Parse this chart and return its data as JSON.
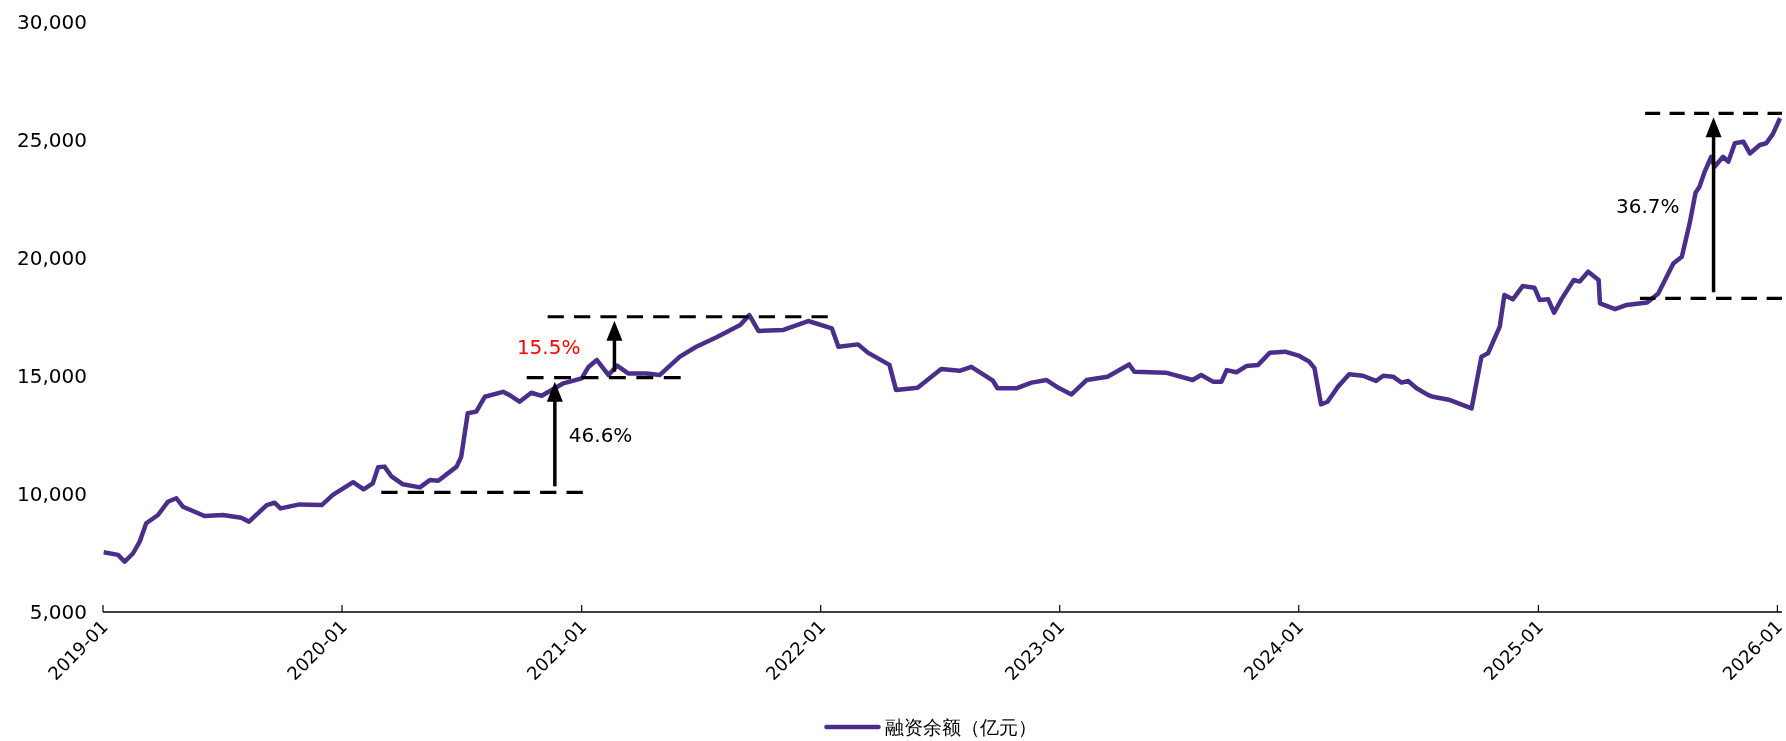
{
  "chart_data": {
    "type": "line",
    "xlim": [
      "2019-01-01",
      "2026-01-08"
    ],
    "ylim": [
      5000,
      30000
    ],
    "xticks": [
      "2019-01",
      "2020-01",
      "2021-01",
      "2022-01",
      "2023-01",
      "2024-01",
      "2025-01",
      "2026-01"
    ],
    "yticks": [
      {
        "value": 5000,
        "label": "5,000"
      },
      {
        "value": 10000,
        "label": "10,000"
      },
      {
        "value": 15000,
        "label": "15,000"
      },
      {
        "value": 20000,
        "label": "20,000"
      },
      {
        "value": 25000,
        "label": "25,000"
      },
      {
        "value": 30000,
        "label": "30,000"
      }
    ],
    "grid": false,
    "legend": "bottom",
    "marker": "none",
    "line_style": "solid",
    "series": [
      {
        "name": "融资余额（亿元）",
        "color": "#4a2f8a",
        "x": [
          "2019-01-02",
          "2019-01-24",
          "2019-02-03",
          "2019-02-16",
          "2019-02-26",
          "2019-03-08",
          "2019-03-26",
          "2019-04-10",
          "2019-04-23",
          "2019-05-03",
          "2019-06-05",
          "2019-07-03",
          "2019-07-31",
          "2019-08-12",
          "2019-09-08",
          "2019-09-20",
          "2019-09-29",
          "2019-10-28",
          "2019-12-01",
          "2019-12-18",
          "2020-01-18",
          "2020-02-03",
          "2020-02-17",
          "2020-02-25",
          "2020-03-06",
          "2020-03-16",
          "2020-04-03",
          "2020-04-29",
          "2020-05-14",
          "2020-05-27",
          "2020-06-24",
          "2020-07-01",
          "2020-07-11",
          "2020-07-24",
          "2020-08-06",
          "2020-09-03",
          "2020-09-13",
          "2020-09-28",
          "2020-10-16",
          "2020-11-01",
          "2020-12-04",
          "2021-01-01",
          "2021-01-11",
          "2021-01-24",
          "2021-02-11",
          "2021-02-24",
          "2021-03-13",
          "2021-04-10",
          "2021-04-30",
          "2021-05-31",
          "2021-06-25",
          "2021-07-26",
          "2021-08-31",
          "2021-09-14",
          "2021-09-28",
          "2021-11-05",
          "2021-12-13",
          "2022-01-18",
          "2022-01-28",
          "2022-02-27",
          "2022-03-14",
          "2022-04-16",
          "2022-04-26",
          "2022-05-29",
          "2022-07-04",
          "2022-08-01",
          "2022-08-19",
          "2022-09-21",
          "2022-09-28",
          "2022-10-27",
          "2022-11-19",
          "2022-12-12",
          "2022-12-30",
          "2023-01-19",
          "2023-02-11",
          "2023-03-15",
          "2023-04-17",
          "2023-04-25",
          "2023-06-12",
          "2023-07-23",
          "2023-08-05",
          "2023-08-23",
          "2023-09-05",
          "2023-09-13",
          "2023-09-28",
          "2023-10-13",
          "2023-10-31",
          "2023-11-18",
          "2023-12-11",
          "2024-01-02",
          "2024-01-17",
          "2024-01-25",
          "2024-02-04",
          "2024-02-14",
          "2024-03-01",
          "2024-03-18",
          "2024-04-08",
          "2024-04-28",
          "2024-05-09",
          "2024-05-24",
          "2024-06-06",
          "2024-06-16",
          "2024-06-29",
          "2024-07-17",
          "2024-07-24",
          "2024-08-19",
          "2024-09-21",
          "2024-10-06",
          "2024-10-16",
          "2024-11-03",
          "2024-11-10",
          "2024-11-23",
          "2024-12-08",
          "2024-12-26",
          "2025-01-03",
          "2025-01-16",
          "2025-01-25",
          "2025-02-06",
          "2025-02-24",
          "2025-03-05",
          "2025-03-18",
          "2025-04-03",
          "2025-04-05",
          "2025-04-28",
          "2025-05-16",
          "2025-06-16",
          "2025-07-03",
          "2025-07-26",
          "2025-08-08",
          "2025-08-20",
          "2025-08-29",
          "2025-09-04",
          "2025-09-12",
          "2025-09-22",
          "2025-09-27",
          "2025-10-10",
          "2025-10-18",
          "2025-10-28",
          "2025-11-10",
          "2025-11-20",
          "2025-12-05",
          "2025-12-15",
          "2025-12-25",
          "2026-01-05"
        ],
        "values": [
          7530,
          7420,
          7130,
          7490,
          7980,
          8760,
          9110,
          9670,
          9820,
          9460,
          9070,
          9110,
          8995,
          8830,
          9530,
          9630,
          9390,
          9560,
          9530,
          9960,
          10500,
          10200,
          10450,
          11130,
          11160,
          10760,
          10410,
          10280,
          10590,
          10560,
          11160,
          11580,
          13420,
          13490,
          14120,
          14330,
          14190,
          13910,
          14290,
          14160,
          14690,
          14900,
          15370,
          15680,
          15040,
          15440,
          15110,
          15110,
          15040,
          15820,
          16240,
          16640,
          17160,
          17580,
          16910,
          16950,
          17330,
          17020,
          16240,
          16340,
          15990,
          15470,
          14410,
          14500,
          15300,
          15220,
          15390,
          14800,
          14480,
          14480,
          14720,
          14830,
          14500,
          14220,
          14830,
          14970,
          15490,
          15180,
          15140,
          14830,
          15040,
          14760,
          14760,
          15250,
          15160,
          15420,
          15470,
          15990,
          16030,
          15850,
          15610,
          15330,
          13800,
          13910,
          14550,
          15070,
          15010,
          14790,
          15010,
          14970,
          14720,
          14790,
          14480,
          14190,
          14120,
          13980,
          13630,
          15820,
          15960,
          17090,
          18430,
          18250,
          18810,
          18740,
          18220,
          18250,
          17680,
          18290,
          19070,
          19000,
          19420,
          19070,
          18080,
          17830,
          18010,
          18110,
          18500,
          19770,
          20050,
          21470,
          22770,
          23020,
          23660,
          24290,
          23870,
          24290,
          24080,
          24860,
          24930,
          24430,
          24790,
          24860,
          25250,
          25920
        ]
      },
      {
        "color": "#000000",
        "line_style": "dashed",
        "x": [
          "2020-03-01",
          "2021-01-03"
        ],
        "values": [
          10070,
          10070
        ]
      },
      {
        "color": "#000000",
        "line_style": "dashed",
        "x": [
          "2020-10-09",
          "2021-06-02"
        ],
        "values": [
          14930,
          14930
        ]
      },
      {
        "color": "#000000",
        "line_style": "dashed",
        "x": [
          "2020-11-10",
          "2022-01-12"
        ],
        "values": [
          17510,
          17510
        ]
      },
      {
        "color": "#000000",
        "line_style": "dashed",
        "x": [
          "2025-06-05",
          "2026-01-08"
        ],
        "values": [
          18290,
          18290
        ]
      },
      {
        "color": "#000000",
        "line_style": "dashed",
        "x": [
          "2025-06-13",
          "2026-01-08"
        ],
        "values": [
          26130,
          26130
        ]
      }
    ],
    "annotations": [
      "46.6%",
      "15.5%",
      "36.7%"
    ]
  }
}
